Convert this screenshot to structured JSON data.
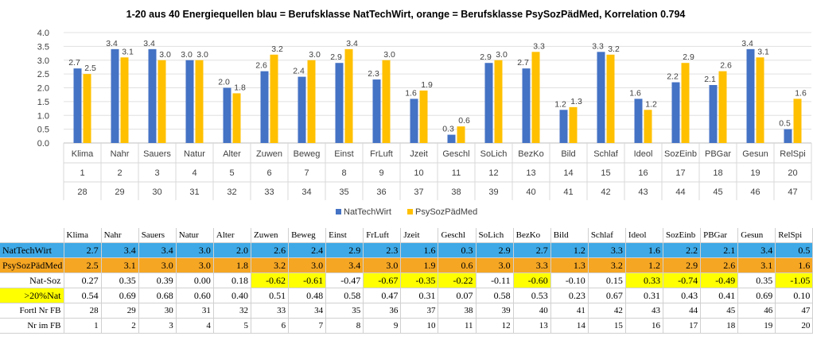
{
  "chart_data": {
    "type": "bar",
    "title": "1-20 aus 40 Energiequellen blau = Berufsklasse NatTechWirt, orange = Berufsklasse PsySozPädMed, Korrelation 0.794",
    "categories": [
      "Klima",
      "Nahr",
      "Sauers",
      "Natur",
      "Alter",
      "Zuwen",
      "Beweg",
      "Einst",
      "FrLuft",
      "Jzeit",
      "Geschl",
      "SoLich",
      "BezKo",
      "Bild",
      "Schlaf",
      "Ideol",
      "SozEinb",
      "PBGar",
      "Gesun",
      "RelSpi"
    ],
    "category_row2": [
      "1",
      "2",
      "3",
      "4",
      "5",
      "6",
      "7",
      "8",
      "9",
      "10",
      "11",
      "12",
      "13",
      "14",
      "15",
      "16",
      "17",
      "18",
      "19",
      "20"
    ],
    "category_row3": [
      "28",
      "29",
      "30",
      "31",
      "32",
      "33",
      "34",
      "35",
      "36",
      "37",
      "38",
      "39",
      "40",
      "41",
      "42",
      "43",
      "44",
      "45",
      "46",
      "47"
    ],
    "series": [
      {
        "name": "NatTechWirt",
        "color": "#4472c4",
        "values": [
          2.7,
          3.4,
          3.4,
          3.0,
          2.0,
          2.6,
          2.4,
          2.9,
          2.3,
          1.6,
          0.3,
          2.9,
          2.7,
          1.2,
          3.3,
          1.6,
          2.2,
          2.1,
          3.4,
          0.5
        ]
      },
      {
        "name": "PsySozPädMed",
        "color": "#ffc000",
        "values": [
          2.5,
          3.1,
          3.0,
          3.0,
          1.8,
          3.2,
          3.0,
          3.4,
          3.0,
          1.9,
          0.6,
          3.0,
          3.3,
          1.3,
          3.2,
          1.2,
          2.9,
          2.6,
          3.1,
          1.6
        ]
      }
    ],
    "ylim": [
      0,
      4.0
    ],
    "yticks": [
      "0.0",
      "0.5",
      "1.0",
      "1.5",
      "2.0",
      "2.5",
      "3.0",
      "3.5",
      "4.0"
    ],
    "grid": true,
    "legend_position": "bottom"
  },
  "table": {
    "headers": [
      "Klima",
      "Nahr",
      "Sauers",
      "Natur",
      "Alter",
      "Zuwen",
      "Beweg",
      "Einst",
      "FrLuft",
      "Jzeit",
      "Geschl",
      "SoLich",
      "BezKo",
      "Bild",
      "Schlaf",
      "Ideol",
      "SozEinb",
      "PBGar",
      "Gesun",
      "RelSpi"
    ],
    "rows": [
      {
        "label": "NatTechWirt",
        "cls": "row-nat",
        "align": "lbl",
        "values": [
          "2.7",
          "3.4",
          "3.4",
          "3.0",
          "2.0",
          "2.6",
          "2.4",
          "2.9",
          "2.3",
          "1.6",
          "0.3",
          "2.9",
          "2.7",
          "1.2",
          "3.3",
          "1.6",
          "2.2",
          "2.1",
          "3.4",
          "0.5"
        ],
        "highlight": []
      },
      {
        "label": "PsySozPädMed",
        "cls": "row-psy",
        "align": "lbl",
        "values": [
          "2.5",
          "3.1",
          "3.0",
          "3.0",
          "1.8",
          "3.2",
          "3.0",
          "3.4",
          "3.0",
          "1.9",
          "0.6",
          "3.0",
          "3.3",
          "1.3",
          "3.2",
          "1.2",
          "2.9",
          "2.6",
          "3.1",
          "1.6"
        ],
        "highlight": []
      },
      {
        "label": "Nat-Soz",
        "cls": "",
        "align": "num",
        "values": [
          "0.27",
          "0.35",
          "0.39",
          "0.00",
          "0.18",
          "-0.62",
          "-0.61",
          "-0.47",
          "-0.67",
          "-0.35",
          "-0.22",
          "-0.11",
          "-0.60",
          "-0.10",
          "0.15",
          "0.33",
          "-0.74",
          "-0.49",
          "0.35",
          "-1.05"
        ],
        "highlight": [
          5,
          6,
          8,
          9,
          10,
          12,
          15,
          16,
          17,
          19
        ]
      },
      {
        "label": ">20%Nat",
        "cls": "",
        "align": "num",
        "label_highlight": true,
        "values": [
          "0.54",
          "0.69",
          "0.68",
          "0.60",
          "0.40",
          "0.51",
          "0.48",
          "0.58",
          "0.47",
          "0.31",
          "0.07",
          "0.58",
          "0.53",
          "0.23",
          "0.67",
          "0.31",
          "0.43",
          "0.41",
          "0.69",
          "0.10"
        ],
        "highlight": []
      },
      {
        "label": "Fortl Nr FB",
        "cls": "",
        "align": "num",
        "small": true,
        "values": [
          "28",
          "29",
          "30",
          "31",
          "32",
          "33",
          "34",
          "35",
          "36",
          "37",
          "38",
          "39",
          "40",
          "41",
          "42",
          "43",
          "44",
          "45",
          "46",
          "47"
        ],
        "highlight": []
      },
      {
        "label": "Nr im FB",
        "cls": "",
        "align": "num",
        "small": true,
        "values": [
          "1",
          "2",
          "3",
          "4",
          "5",
          "6",
          "7",
          "8",
          "9",
          "10",
          "11",
          "12",
          "13",
          "14",
          "15",
          "16",
          "17",
          "18",
          "19",
          "20"
        ],
        "highlight": []
      }
    ]
  }
}
